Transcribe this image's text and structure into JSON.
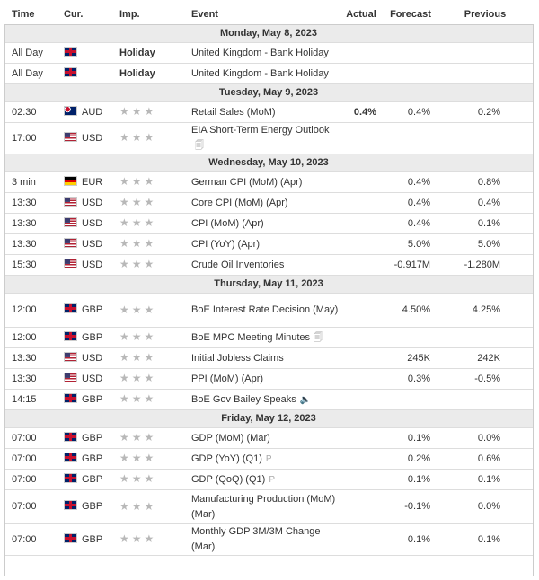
{
  "columns": [
    "Time",
    "Cur.",
    "Imp.",
    "Event",
    "Actual",
    "Forecast",
    "Previous"
  ],
  "days": [
    {
      "title": "Monday, May 8, 2023",
      "rows": [
        {
          "time": "All Day",
          "importance": "Holiday",
          "event": "United Kingdom - Bank Holiday"
        },
        {
          "time": "All Day",
          "importance": "Holiday",
          "event": "United Kingdom - Bank Holiday"
        }
      ]
    },
    {
      "title": "Tuesday, May 9, 2023",
      "rows": [
        {
          "time": "02:30",
          "currency": "AUD",
          "event": "Retail Sales (MoM)",
          "actual": "0.4%",
          "forecast": "0.4%",
          "previous": "0.2%"
        },
        {
          "time": "17:00",
          "currency": "USD",
          "event": "EIA Short-Term Energy Outlook"
        }
      ]
    },
    {
      "title": "Wednesday, May 10, 2023",
      "rows": [
        {
          "time": "3 min",
          "currency": "EUR",
          "event": "German CPI (MoM) (Apr)",
          "forecast": "0.4%",
          "previous": "0.8%"
        },
        {
          "time": "13:30",
          "currency": "USD",
          "event": "Core CPI (MoM) (Apr)",
          "forecast": "0.4%",
          "previous": "0.4%"
        },
        {
          "time": "13:30",
          "currency": "USD",
          "event": "CPI (MoM) (Apr)",
          "forecast": "0.4%",
          "previous": "0.1%"
        },
        {
          "time": "13:30",
          "currency": "USD",
          "event": "CPI (YoY) (Apr)",
          "forecast": "5.0%",
          "previous": "5.0%"
        },
        {
          "time": "15:30",
          "currency": "USD",
          "event": "Crude Oil Inventories",
          "forecast": "-0.917M",
          "previous": "-1.280M"
        }
      ]
    },
    {
      "title": "Thursday, May 11, 2023",
      "rows": [
        {
          "time": "12:00",
          "currency": "GBP",
          "event": "BoE Interest Rate Decision (May)",
          "forecast": "4.50%",
          "previous": "4.25%"
        },
        {
          "time": "12:00",
          "currency": "GBP",
          "event": "BoE MPC Meeting Minutes"
        },
        {
          "time": "13:30",
          "currency": "USD",
          "event": "Initial Jobless Claims",
          "forecast": "245K",
          "previous": "242K"
        },
        {
          "time": "13:30",
          "currency": "USD",
          "event": "PPI (MoM) (Apr)",
          "forecast": "0.3%",
          "previous": "-0.5%"
        },
        {
          "time": "14:15",
          "currency": "GBP",
          "event": "BoE Gov Bailey Speaks"
        }
      ]
    },
    {
      "title": "Friday, May 12, 2023",
      "rows": [
        {
          "time": "07:00",
          "currency": "GBP",
          "event": "GDP (MoM) (Mar)",
          "forecast": "0.1%",
          "previous": "0.0%"
        },
        {
          "time": "07:00",
          "currency": "GBP",
          "event": "GDP (YoY) (Q1)",
          "forecast": "0.2%",
          "previous": "0.6%"
        },
        {
          "time": "07:00",
          "currency": "GBP",
          "event": "GDP (QoQ) (Q1)",
          "forecast": "0.1%",
          "previous": "0.1%"
        },
        {
          "time": "07:00",
          "currency": "GBP",
          "event": "Manufacturing Production (MoM) (Mar)",
          "forecast": "-0.1%",
          "previous": "0.0%"
        },
        {
          "time": "07:00",
          "currency": "GBP",
          "event": "Monthly GDP 3M/3M Change (Mar)",
          "forecast": "0.1%",
          "previous": "0.1%"
        }
      ]
    }
  ]
}
